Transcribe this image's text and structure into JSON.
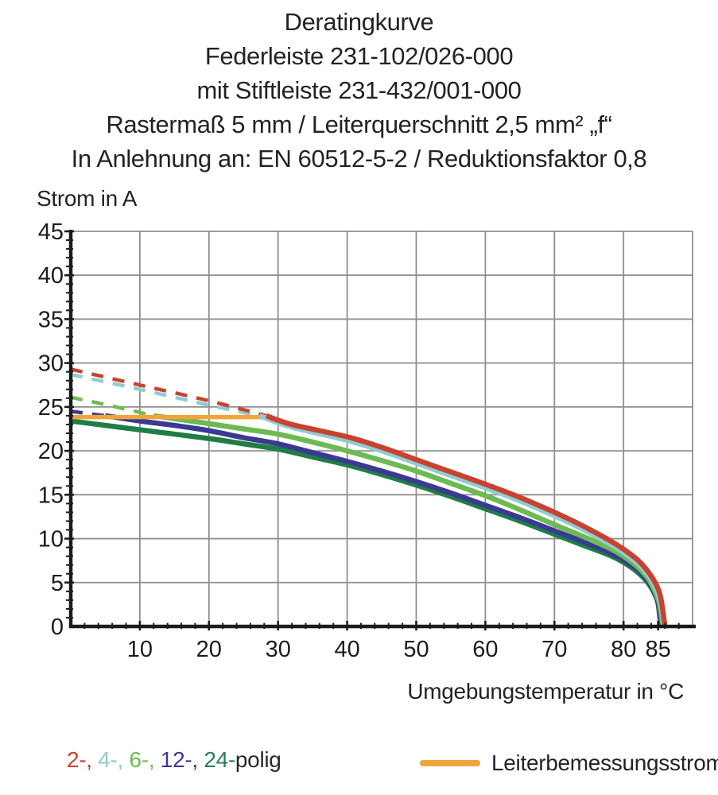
{
  "chart_data": {
    "type": "line",
    "title_lines": [
      "Deratingkurve",
      "Federleiste 231-102/026-000",
      "mit Stiftleiste 231-432/001-000",
      "Rastermaß 5 mm / Leiterquerschnitt 2,5 mm² „f“",
      "In Anlehnung an: EN 60512-5-2 / Reduktionsfaktor 0,8"
    ],
    "x_axis": {
      "title": "Umgebungstemperatur in °C",
      "min": 0,
      "max": 90,
      "major_ticks": [
        10,
        20,
        30,
        40,
        50,
        60,
        70,
        80,
        85
      ],
      "minor_tick_step": 2,
      "gridlines": [
        10,
        20,
        30,
        40,
        50,
        60,
        70,
        80,
        90
      ]
    },
    "y_axis": {
      "title": "Strom in A",
      "min": 0,
      "max": 45,
      "major_ticks": [
        0,
        5,
        10,
        15,
        20,
        25,
        30,
        35,
        40,
        45
      ],
      "minor_tick_step": 1,
      "gridlines": [
        5,
        10,
        15,
        20,
        25,
        30,
        35,
        40,
        45
      ]
    },
    "grid_color": "#8f8f8f",
    "axis_color": "#1c1c1e",
    "series": [
      {
        "name": "2-polig",
        "color": "#c8422f",
        "dashed_points": [
          [
            0,
            29.3
          ],
          [
            10,
            27.5
          ],
          [
            20,
            25.7
          ],
          [
            28.3,
            24.0
          ]
        ],
        "solid_points": [
          [
            28.3,
            24.0
          ],
          [
            32,
            23.0
          ],
          [
            40,
            21.6
          ],
          [
            45,
            20.4
          ],
          [
            50,
            19.0
          ],
          [
            55,
            17.6
          ],
          [
            60,
            16.2
          ],
          [
            65,
            14.7
          ],
          [
            70,
            13.0
          ],
          [
            74,
            11.5
          ],
          [
            78,
            9.8
          ],
          [
            80,
            8.8
          ],
          [
            82,
            7.6
          ],
          [
            83.5,
            6.3
          ],
          [
            84.7,
            4.8
          ],
          [
            85.4,
            3.2
          ],
          [
            86,
            0
          ]
        ]
      },
      {
        "name": "4-polig",
        "color": "#8fccd3",
        "dashed_points": [
          [
            0,
            28.7
          ],
          [
            10,
            27.0
          ],
          [
            20,
            25.2
          ],
          [
            27.3,
            24.0
          ]
        ],
        "solid_points": [
          [
            27.3,
            24.0
          ],
          [
            32,
            22.7
          ],
          [
            40,
            21.2
          ],
          [
            45,
            20.0
          ],
          [
            50,
            18.6
          ],
          [
            55,
            17.2
          ],
          [
            60,
            15.8
          ],
          [
            65,
            14.3
          ],
          [
            70,
            12.6
          ],
          [
            74,
            11.1
          ],
          [
            78,
            9.4
          ],
          [
            80,
            8.4
          ],
          [
            82,
            7.2
          ],
          [
            83.5,
            5.9
          ],
          [
            84.6,
            4.4
          ],
          [
            85.3,
            2.8
          ],
          [
            85.9,
            0
          ]
        ]
      },
      {
        "name": "6-polig",
        "color": "#6eba52",
        "dashed_points": [
          [
            0,
            26.1
          ],
          [
            6,
            25.1
          ],
          [
            12,
            24.0
          ]
        ],
        "solid_points": [
          [
            12,
            24.0
          ],
          [
            20,
            23.1
          ],
          [
            25,
            22.5
          ],
          [
            30,
            21.9
          ],
          [
            35,
            21.0
          ],
          [
            40,
            20.0
          ],
          [
            45,
            18.9
          ],
          [
            50,
            17.7
          ],
          [
            55,
            16.3
          ],
          [
            60,
            14.9
          ],
          [
            65,
            13.3
          ],
          [
            70,
            11.6
          ],
          [
            74,
            10.3
          ],
          [
            78,
            8.9
          ],
          [
            80,
            8.0
          ],
          [
            82,
            6.8
          ],
          [
            83.5,
            5.5
          ],
          [
            84.5,
            4.1
          ],
          [
            85.2,
            2.6
          ],
          [
            85.7,
            0
          ]
        ]
      },
      {
        "name": "12-polig",
        "color": "#3a3a92",
        "dashed_points": [
          [
            0,
            24.5
          ],
          [
            5,
            24.0
          ]
        ],
        "solid_points": [
          [
            5,
            24.0
          ],
          [
            10,
            23.4
          ],
          [
            15,
            22.9
          ],
          [
            20,
            22.3
          ],
          [
            25,
            21.5
          ],
          [
            30,
            20.8
          ],
          [
            35,
            19.8
          ],
          [
            40,
            18.8
          ],
          [
            45,
            17.7
          ],
          [
            50,
            16.5
          ],
          [
            55,
            15.2
          ],
          [
            60,
            13.8
          ],
          [
            65,
            12.4
          ],
          [
            70,
            10.9
          ],
          [
            74,
            9.7
          ],
          [
            78,
            8.4
          ],
          [
            80,
            7.6
          ],
          [
            82,
            6.5
          ],
          [
            83.5,
            5.2
          ],
          [
            84.5,
            3.9
          ],
          [
            85,
            2.8
          ],
          [
            85.5,
            0
          ]
        ]
      },
      {
        "name": "24-polig",
        "color": "#1f7d46",
        "dashed_points": [],
        "solid_points": [
          [
            0,
            23.4
          ],
          [
            10,
            22.4
          ],
          [
            20,
            21.4
          ],
          [
            25,
            20.8
          ],
          [
            30,
            20.2
          ],
          [
            35,
            19.3
          ],
          [
            40,
            18.4
          ],
          [
            45,
            17.3
          ],
          [
            50,
            16.1
          ],
          [
            55,
            14.8
          ],
          [
            60,
            13.4
          ],
          [
            65,
            12.0
          ],
          [
            70,
            10.5
          ],
          [
            74,
            9.3
          ],
          [
            78,
            8.1
          ],
          [
            80,
            7.3
          ],
          [
            82,
            6.2
          ],
          [
            83.5,
            5.0
          ],
          [
            84.5,
            3.7
          ],
          [
            85,
            2.6
          ],
          [
            85.4,
            0
          ]
        ]
      },
      {
        "name": "Leiterbemessungsstrom",
        "role": "limit",
        "color": "#f0a53c",
        "dashed_points": [],
        "solid_points": [
          [
            0,
            23.85
          ],
          [
            28.8,
            23.85
          ]
        ]
      }
    ],
    "legend": {
      "poles_segments": [
        {
          "text": "2-, ",
          "color": "#c8422f"
        },
        {
          "text": "4-, ",
          "color": "#8fccd3"
        },
        {
          "text": "6-, ",
          "color": "#6eba52"
        },
        {
          "text": "12-, ",
          "color": "#3a3a92"
        },
        {
          "text": "24-",
          "color": "#2a7d5a"
        },
        {
          "text": "polig",
          "color": "#2a2a2e"
        }
      ],
      "limit_label": "Leiterbemessungsstrom"
    }
  }
}
